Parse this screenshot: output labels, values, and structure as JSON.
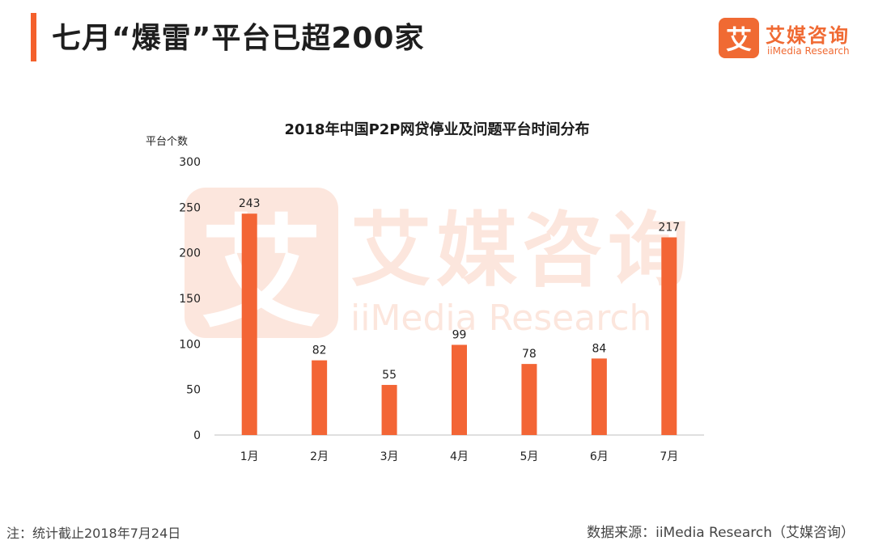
{
  "header": {
    "title": "七月“爆雷”平台已超200家"
  },
  "logo": {
    "mark": "艾",
    "name_cn": "艾媒咨询",
    "name_en": "iiMedia Research"
  },
  "colors": {
    "accent": "#f4602c",
    "bar": "#f36535",
    "axis": "#bfbfbf",
    "logo_text": "#f06a33"
  },
  "chart_data": {
    "type": "bar",
    "title": "2018年中国P2P网贷停业及问题平台时间分布",
    "ylabel": "平台个数",
    "xlabel": "",
    "categories": [
      "1月",
      "2月",
      "3月",
      "4月",
      "5月",
      "6月",
      "7月"
    ],
    "values": [
      243,
      82,
      55,
      99,
      78,
      84,
      217
    ],
    "ylim": [
      0,
      300
    ],
    "yticks": [
      0,
      50,
      100,
      150,
      200,
      250,
      300
    ],
    "grid": false,
    "legend": "none"
  },
  "footer": {
    "note": "注：统计截止2018年7月24日",
    "source": "数据来源：iiMedia Research（艾媒咨询）"
  }
}
